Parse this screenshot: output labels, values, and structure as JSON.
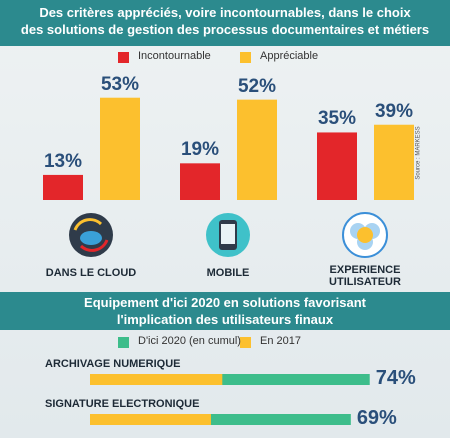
{
  "chart_data": [
    {
      "type": "bar",
      "title": [
        "Des critères appréciés, voire incontournables, dans le choix",
        "des solutions de gestion des processus documentaires et métiers"
      ],
      "categories": [
        "DANS LE CLOUD",
        "MOBILE",
        "EXPERIENCE UTILISATEUR"
      ],
      "series": [
        {
          "name": "Incontournable",
          "color": "#e3262a",
          "values": [
            13,
            19,
            35
          ],
          "value_labels": [
            "13%",
            "19%",
            "35%"
          ]
        },
        {
          "name": "Appréciable",
          "color": "#fcc02e",
          "values": [
            53,
            52,
            39
          ],
          "value_labels": [
            "53%",
            "52%",
            "39%"
          ]
        }
      ],
      "annotations": [
        "Source : MARKESS"
      ]
    },
    {
      "type": "hbar",
      "title": [
        "Equipement d'ici 2020 en solutions favorisant",
        "l'implication des utilisateurs finaux"
      ],
      "categories": [
        "ARCHIVAGE NUMERIQUE",
        "SIGNATURE ELECTRONIQUE"
      ],
      "series": [
        {
          "name": "D'ici 2020 (en cumul)",
          "color": "#3dbd8b",
          "values": [
            74,
            69
          ],
          "value_labels": [
            "74%",
            "69%"
          ]
        },
        {
          "name": "En 2017",
          "color": "#fcc02e",
          "values": [
            35,
            32
          ]
        }
      ]
    }
  ]
}
